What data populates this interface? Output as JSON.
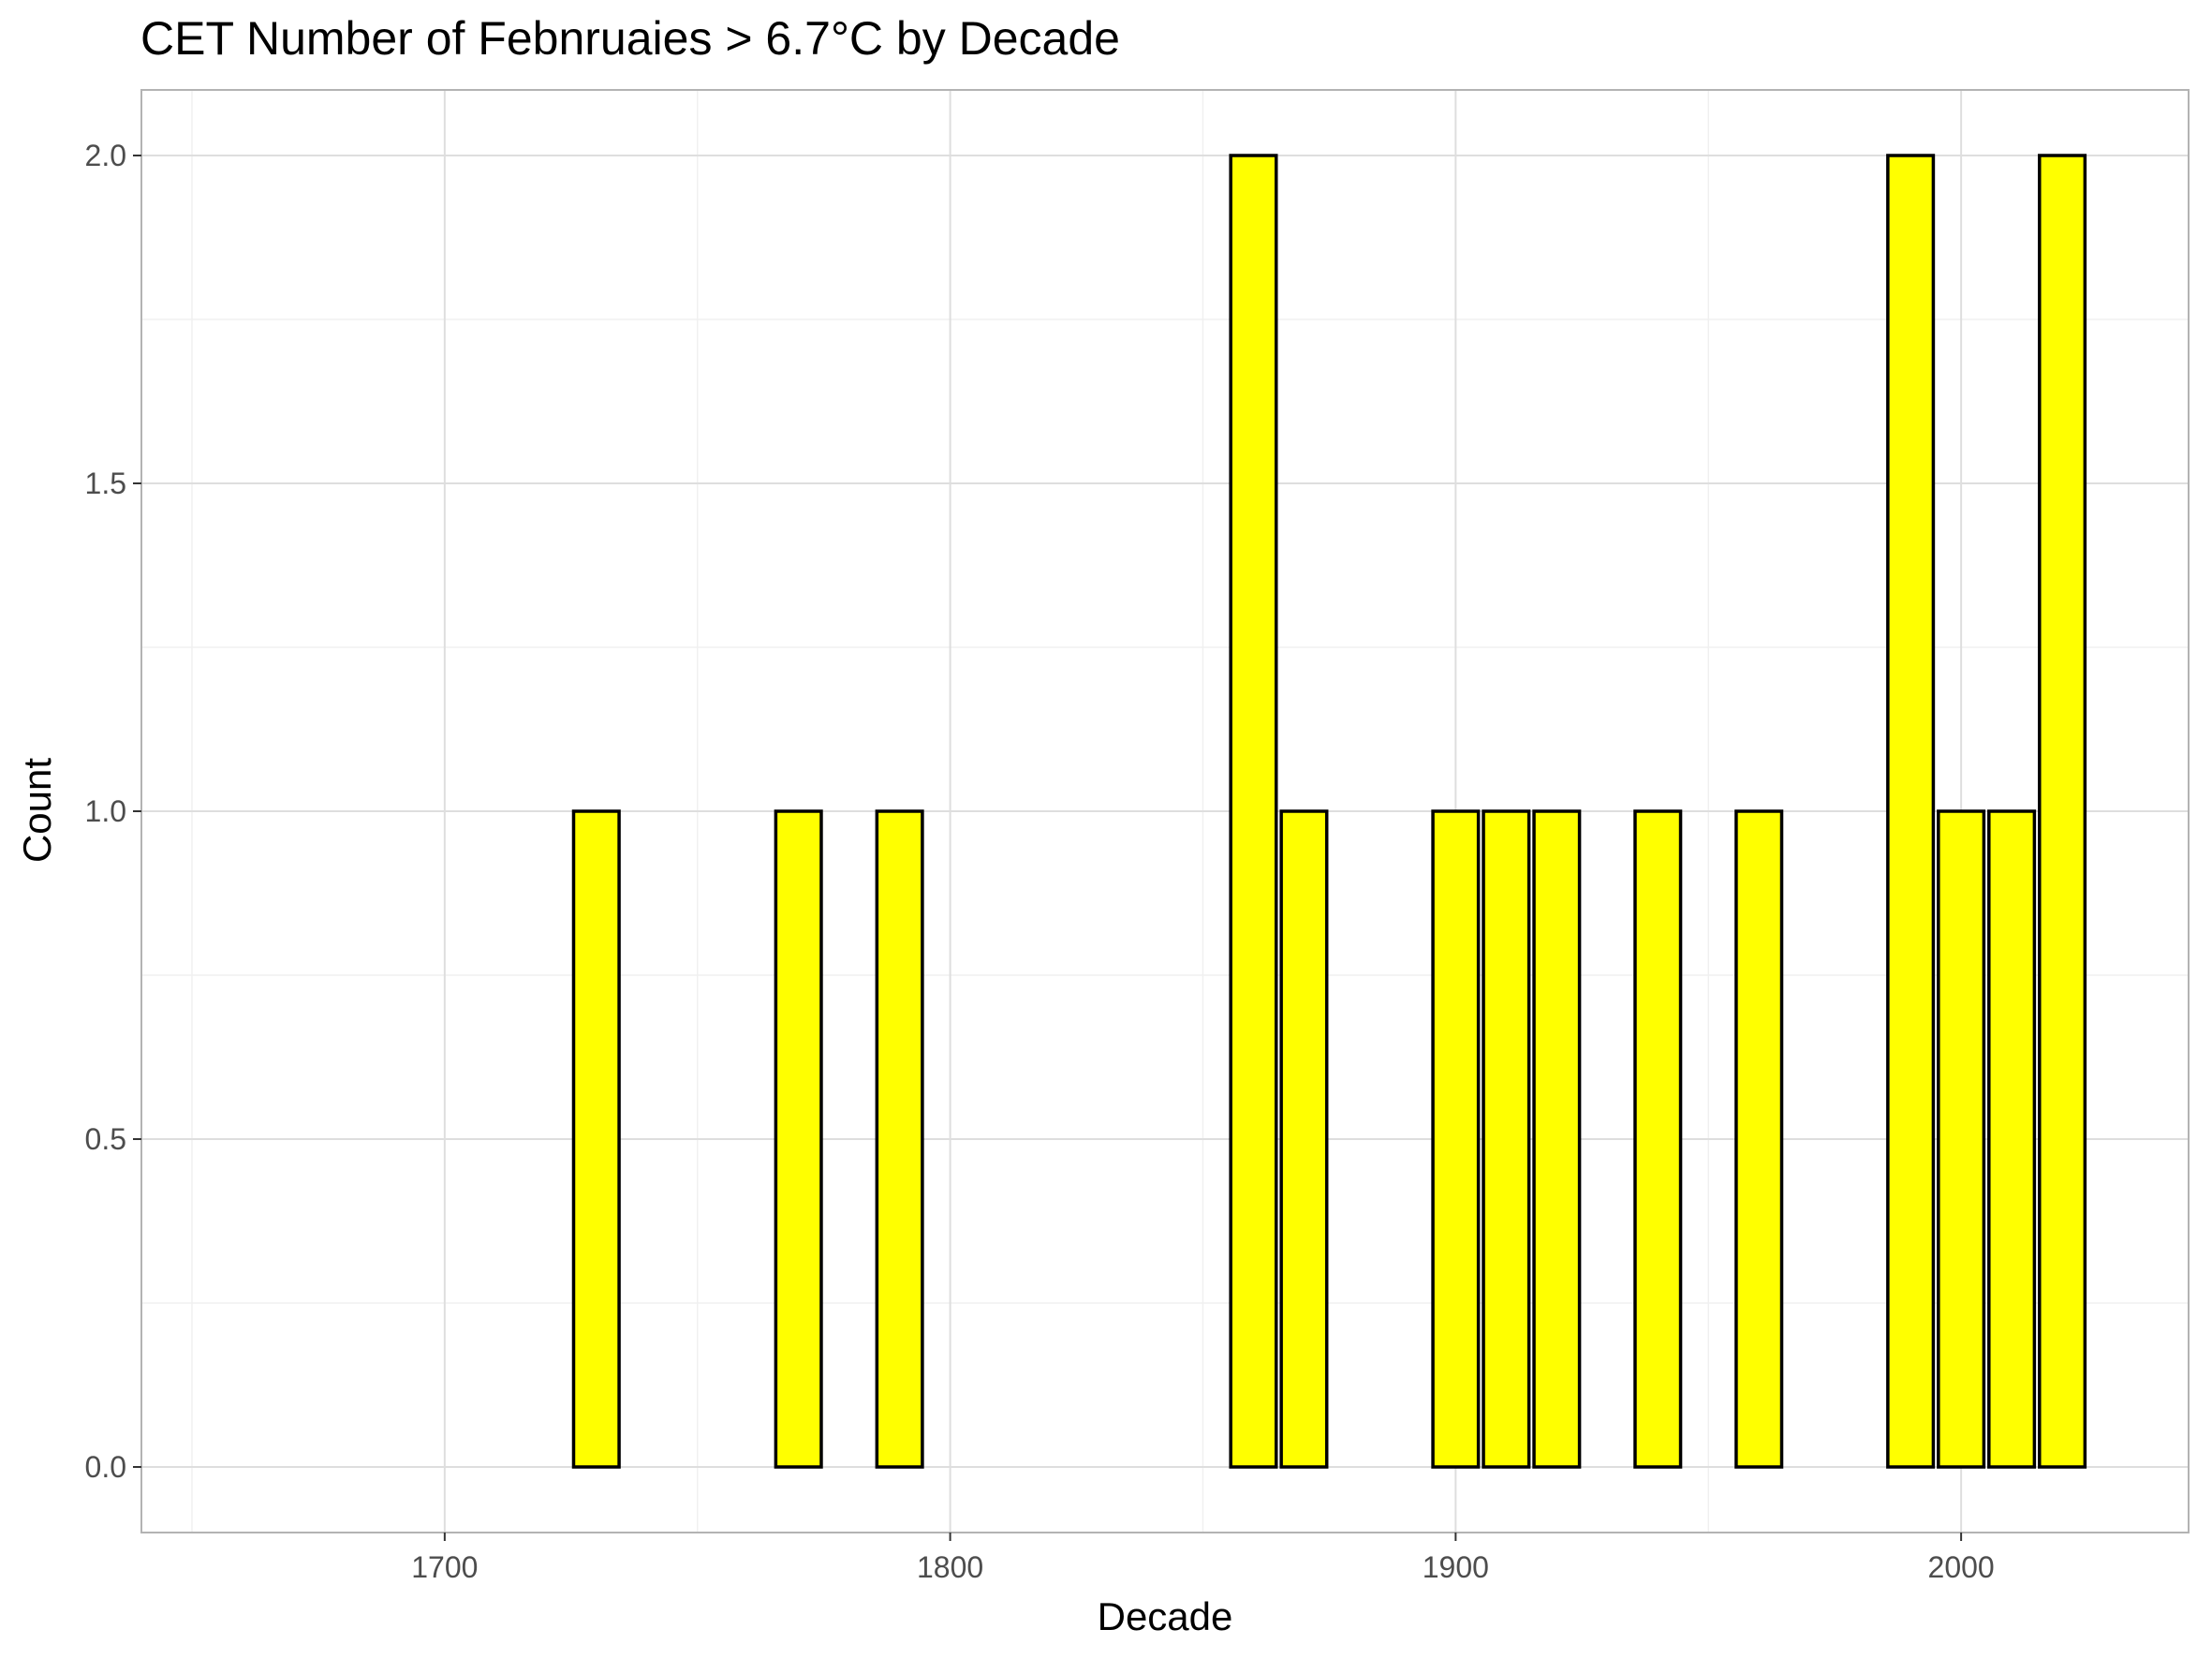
{
  "chart_data": {
    "type": "bar",
    "title": "CET Number of Febnruaies > 6.7°C by Decade",
    "xlabel": "Decade",
    "ylabel": "Count",
    "xlim": [
      1640,
      2045
    ],
    "ylim": [
      -0.1,
      2.1
    ],
    "x_ticks": [
      "1700",
      "1800",
      "1900",
      "2000"
    ],
    "y_ticks": [
      "0.0",
      "0.5",
      "1.0",
      "1.5",
      "2.0"
    ],
    "x": [
      1660,
      1670,
      1680,
      1690,
      1700,
      1710,
      1720,
      1730,
      1740,
      1750,
      1760,
      1770,
      1780,
      1790,
      1800,
      1810,
      1820,
      1830,
      1840,
      1850,
      1860,
      1870,
      1880,
      1890,
      1900,
      1910,
      1920,
      1930,
      1940,
      1950,
      1960,
      1970,
      1980,
      1990,
      2000,
      2010,
      2020
    ],
    "values": [
      0,
      0,
      0,
      0,
      0,
      0,
      0,
      1,
      0,
      0,
      0,
      1,
      0,
      1,
      0,
      0,
      0,
      0,
      0,
      0,
      2,
      1,
      0,
      0,
      1,
      1,
      1,
      0,
      1,
      0,
      1,
      0,
      0,
      2,
      1,
      1,
      2
    ],
    "bar_fill": "#ffff00",
    "bar_outline": "#000000",
    "grid": true,
    "legend": "none"
  }
}
